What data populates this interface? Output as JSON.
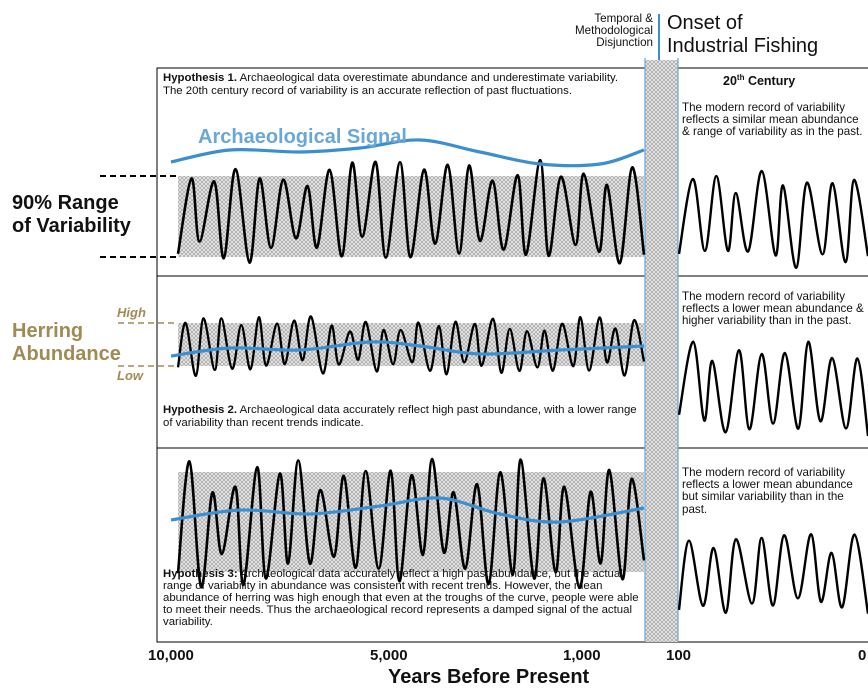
{
  "header": {
    "disjunction_label": [
      "Temporal &",
      "Methodological",
      "Disjunction"
    ],
    "onset_label": [
      "Onset of",
      "Industrial Fishing"
    ]
  },
  "left_labels": {
    "range_label": [
      "90% Range",
      "of Variability"
    ],
    "herring_label": [
      "Herring",
      "Abundance"
    ],
    "high": "High",
    "low": "Low"
  },
  "panels": [
    {
      "hypothesis_title": "Hypothesis 1.",
      "hypothesis_text": "Archaeological data overestimate abundance and underestimate variability. The 20th century record of variability is an accurate reflection of past fluctuations.",
      "signal_label": "Archaeological Signal",
      "century_title": "20",
      "century_sup": "th",
      "century_rest": " Century",
      "modern_text": "The modern record of variability reflects a similar mean abundance & range of variability as in the past."
    },
    {
      "hypothesis_title": "Hypothesis 2.",
      "hypothesis_text": "Archaeological data accurately reflect high past abundance, with a lower range of variability than recent trends indicate.",
      "modern_text": "The modern record of variability reflects a lower mean abundance & higher variability than in the past."
    },
    {
      "hypothesis_title": "Hypothesis 3:",
      "hypothesis_text": "Archaeological data accurately reflect a high past abundance, but the actual range of variability in abundance was consistent with recent trends. However, the mean abundance of herring was high enough that even at the troughs of the curve, people were able to meet their needs. Thus the archaeological record represents a damped signal of the actual variability.",
      "modern_text": "The modern record of variability reflects a lower mean abundance but similar variability than in the past."
    }
  ],
  "x_axis": {
    "ticks": [
      "10,000",
      "5,000",
      "1,000",
      "100",
      "0"
    ],
    "title": "Years Before Present"
  },
  "colors": {
    "signal_blue": "#3b8fce",
    "herring_tan": "#a08a55",
    "curve": "#000000",
    "range_band": "#d9d9d9"
  }
}
